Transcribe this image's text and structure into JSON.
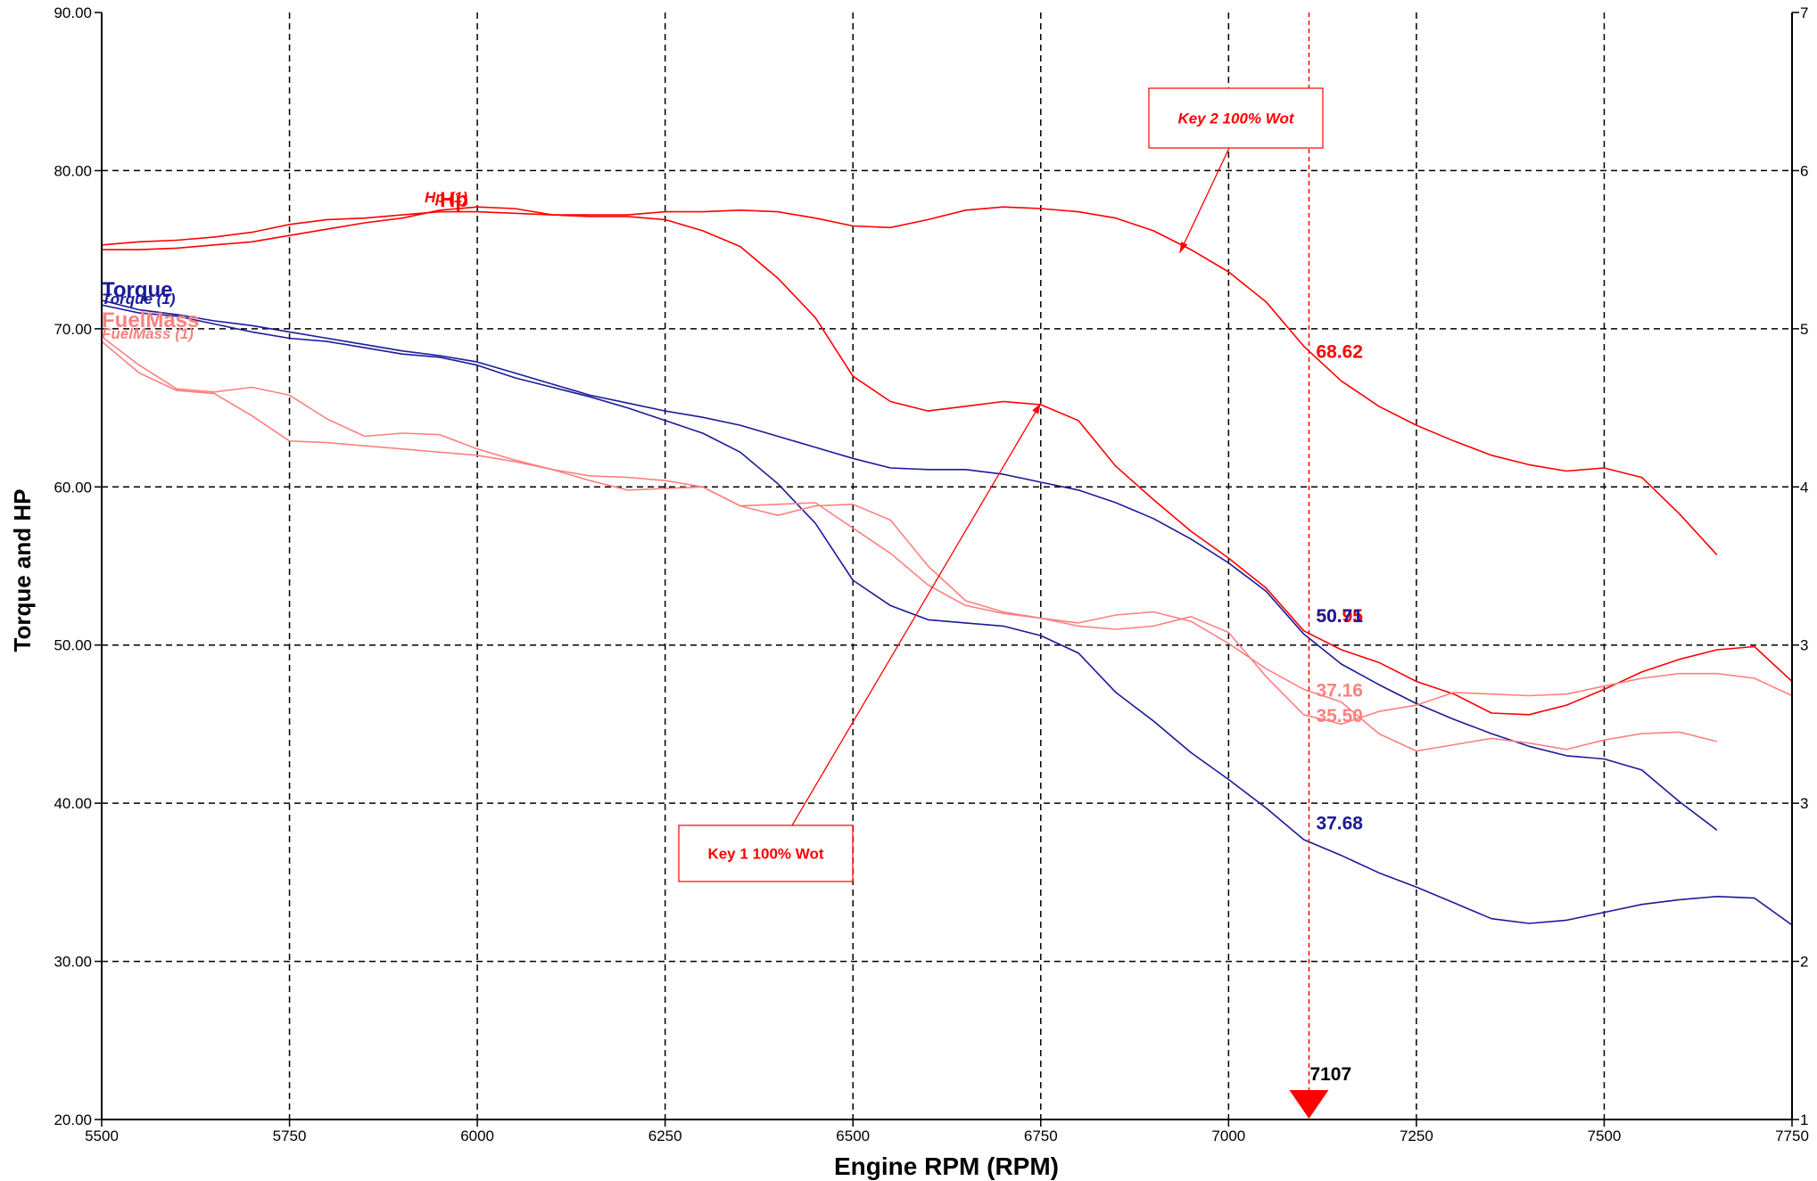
{
  "chart_data": {
    "type": "line",
    "title_partial": "...",
    "xlabel": "Engine RPM (RPM)",
    "ylabel": "Torque and HP",
    "xlim": [
      5500,
      7750
    ],
    "ylim": [
      20,
      90
    ],
    "x_ticks": [
      5500,
      5750,
      6000,
      6250,
      6500,
      6750,
      7000,
      7250,
      7500,
      7750
    ],
    "x_tick_labels": [
      "5500",
      "5750",
      "6000",
      "6250",
      "6500",
      "6750",
      "7000",
      "7250",
      "7500",
      "7750"
    ],
    "y_ticks": [
      20,
      30,
      40,
      50,
      60,
      70,
      80,
      90
    ],
    "y_tick_labels": [
      "20.00",
      "30.00",
      "40.00",
      "50.00",
      "60.00",
      "70.00",
      "80.00",
      "90.00"
    ],
    "grid": true,
    "colors": {
      "hp": "#ff0000",
      "torque": "#1a1a99",
      "fuel": "#ff8080",
      "cursor": "#ff0000",
      "grid": "#000000"
    },
    "legend": [
      {
        "label": "Torque",
        "style": "big",
        "color": "#1a1a99"
      },
      {
        "label": "Torque (1)",
        "style": "small",
        "color": "#1a1a99"
      },
      {
        "label": "FuelMass",
        "style": "big",
        "color": "#ff8080"
      },
      {
        "label": "FuelMass (1)",
        "style": "small",
        "color": "#ff8080"
      },
      {
        "label": "Hp (1)",
        "style": "small",
        "color": "#ff0000"
      },
      {
        "label": "Hp",
        "style": "big",
        "color": "#ff0000"
      }
    ],
    "series": [
      {
        "name": "Hp",
        "color": "#ff0000",
        "x": [
          5500,
          5550,
          5600,
          5650,
          5700,
          5750,
          5800,
          5850,
          5900,
          5950,
          6000,
          6050,
          6100,
          6150,
          6200,
          6250,
          6300,
          6350,
          6400,
          6450,
          6500,
          6550,
          6600,
          6650,
          6700,
          6750,
          6800,
          6850,
          6900,
          6950,
          7000,
          7050,
          7100,
          7150,
          7200,
          7250,
          7300,
          7350,
          7400,
          7450,
          7500,
          7550,
          7600,
          7650
        ],
        "y": [
          75.3,
          75.5,
          75.6,
          75.8,
          76.1,
          76.6,
          76.9,
          77.0,
          77.2,
          77.4,
          77.4,
          77.3,
          77.2,
          77.2,
          77.2,
          77.4,
          77.4,
          77.5,
          77.4,
          77.0,
          76.5,
          76.4,
          76.9,
          77.5,
          77.7,
          77.6,
          77.4,
          77.0,
          76.2,
          75.0,
          73.6,
          71.7,
          68.9,
          66.7,
          65.1,
          63.9,
          62.9,
          62.0,
          61.4,
          61.0,
          61.2,
          60.6,
          58.3,
          55.7
        ]
      },
      {
        "name": "Hp (1)",
        "color": "#ff0000",
        "x": [
          5500,
          5550,
          5600,
          5650,
          5700,
          5750,
          5800,
          5850,
          5900,
          5950,
          6000,
          6050,
          6100,
          6150,
          6200,
          6250,
          6300,
          6350,
          6400,
          6450,
          6500,
          6550,
          6600,
          6650,
          6700,
          6750,
          6800,
          6850,
          6900,
          6950,
          7000,
          7050,
          7100,
          7150,
          7200,
          7250,
          7300,
          7350,
          7400,
          7450,
          7500,
          7550,
          7600,
          7650,
          7700,
          7750
        ],
        "y": [
          75.0,
          75.0,
          75.1,
          75.3,
          75.5,
          75.9,
          76.3,
          76.7,
          77.0,
          77.5,
          77.7,
          77.6,
          77.2,
          77.1,
          77.1,
          76.9,
          76.2,
          75.2,
          73.2,
          70.7,
          67.0,
          65.4,
          64.8,
          65.1,
          65.4,
          65.2,
          64.2,
          61.3,
          59.2,
          57.2,
          55.5,
          53.6,
          50.9,
          49.7,
          48.9,
          47.7,
          46.9,
          45.7,
          45.6,
          46.2,
          47.2,
          48.3,
          49.1,
          49.7,
          49.9,
          47.7
        ]
      },
      {
        "name": "Torque",
        "color": "#1a1a99",
        "x": [
          5500,
          5550,
          5600,
          5650,
          5700,
          5750,
          5800,
          5850,
          5900,
          5950,
          6000,
          6050,
          6100,
          6150,
          6200,
          6250,
          6300,
          6350,
          6400,
          6450,
          6500,
          6550,
          6600,
          6650,
          6700,
          6750,
          6800,
          6850,
          6900,
          6950,
          7000,
          7050,
          7100,
          7150,
          7200,
          7250,
          7300,
          7350,
          7400,
          7450,
          7500,
          7550,
          7600,
          7650
        ],
        "y": [
          71.8,
          71.2,
          70.9,
          70.5,
          70.2,
          69.8,
          69.4,
          69.0,
          68.6,
          68.3,
          67.9,
          67.2,
          66.5,
          65.8,
          65.3,
          64.8,
          64.4,
          63.9,
          63.2,
          62.5,
          61.8,
          61.2,
          61.1,
          61.1,
          60.8,
          60.3,
          59.8,
          59.0,
          58.0,
          56.7,
          55.2,
          53.4,
          50.7,
          48.8,
          47.5,
          46.3,
          45.3,
          44.4,
          43.6,
          43.0,
          42.8,
          42.1,
          40.1,
          38.3
        ]
      },
      {
        "name": "Torque (1)",
        "color": "#1a1a99",
        "x": [
          5500,
          5550,
          5600,
          5650,
          5700,
          5750,
          5800,
          5850,
          5900,
          5950,
          6000,
          6050,
          6100,
          6150,
          6200,
          6250,
          6300,
          6350,
          6400,
          6450,
          6500,
          6550,
          6600,
          6650,
          6700,
          6750,
          6800,
          6850,
          6900,
          6950,
          7000,
          7050,
          7100,
          7150,
          7200,
          7250,
          7300,
          7350,
          7400,
          7450,
          7500,
          7550,
          7600,
          7650,
          7700,
          7750
        ],
        "y": [
          71.5,
          71.0,
          70.8,
          70.3,
          69.8,
          69.4,
          69.2,
          68.8,
          68.4,
          68.2,
          67.7,
          66.9,
          66.3,
          65.7,
          65.0,
          64.2,
          63.4,
          62.2,
          60.2,
          57.7,
          54.1,
          52.5,
          51.6,
          51.4,
          51.2,
          50.6,
          49.5,
          47.0,
          45.2,
          43.2,
          41.5,
          39.7,
          37.7,
          36.7,
          35.6,
          34.7,
          33.7,
          32.7,
          32.4,
          32.6,
          33.1,
          33.6,
          33.9,
          34.1,
          34.0,
          32.3
        ]
      },
      {
        "name": "FuelMass",
        "color": "#ff8080",
        "x": [
          5500,
          5550,
          5600,
          5650,
          5700,
          5750,
          5800,
          5850,
          5900,
          5950,
          6000,
          6050,
          6100,
          6150,
          6200,
          6250,
          6300,
          6350,
          6400,
          6450,
          6500,
          6550,
          6600,
          6650,
          6700,
          6750,
          6800,
          6850,
          6900,
          6950,
          7000,
          7050,
          7100,
          7150,
          7200,
          7250,
          7300,
          7350,
          7400,
          7450,
          7500,
          7550,
          7600,
          7650
        ],
        "y": [
          69.5,
          67.7,
          66.2,
          66.0,
          66.3,
          65.8,
          64.3,
          63.2,
          63.4,
          63.3,
          62.4,
          61.7,
          61.1,
          60.4,
          59.8,
          59.9,
          60.0,
          58.8,
          58.2,
          58.8,
          58.9,
          57.9,
          55.0,
          52.8,
          52.1,
          51.7,
          51.4,
          51.9,
          52.1,
          51.5,
          50.1,
          48.5,
          47.2,
          46.4,
          44.4,
          43.3,
          43.7,
          44.1,
          43.8,
          43.4,
          44.0,
          44.4,
          44.5,
          43.9
        ]
      },
      {
        "name": "FuelMass (1)",
        "color": "#ff8080",
        "x": [
          5500,
          5550,
          5600,
          5650,
          5700,
          5750,
          5800,
          5850,
          5900,
          5950,
          6000,
          6050,
          6100,
          6150,
          6200,
          6250,
          6300,
          6350,
          6400,
          6450,
          6500,
          6550,
          6600,
          6650,
          6700,
          6750,
          6800,
          6850,
          6900,
          6950,
          7000,
          7050,
          7100,
          7150,
          7200,
          7250,
          7300,
          7350,
          7400,
          7450,
          7500,
          7550,
          7600,
          7650,
          7700,
          7750
        ],
        "y": [
          69.2,
          67.2,
          66.1,
          65.9,
          64.5,
          62.9,
          62.8,
          62.6,
          62.4,
          62.2,
          62.0,
          61.6,
          61.1,
          60.7,
          60.6,
          60.4,
          60.0,
          58.8,
          58.9,
          59.0,
          57.4,
          55.8,
          53.8,
          52.5,
          52.0,
          51.7,
          51.2,
          51.0,
          51.2,
          51.8,
          50.8,
          48.0,
          45.6,
          45.0,
          45.8,
          46.2,
          47.0,
          46.9,
          46.8,
          46.9,
          47.4,
          47.9,
          48.2,
          48.2,
          47.9,
          46.8
        ]
      }
    ],
    "cursor": {
      "x": 7107,
      "label": "7107",
      "values": [
        {
          "text": "68.62",
          "y": 68.62,
          "color": "#ff0000",
          "overlap": false
        },
        {
          "text": "50.95",
          "y": 51.9,
          "color": "#ff0000",
          "overlap": true
        },
        {
          "text": "50.71",
          "y": 51.9,
          "color": "#1a1a99",
          "overlap": true
        },
        {
          "text": "37.16",
          "y": 47.2,
          "color": "#ff8080",
          "overlap": false
        },
        {
          "text": "35.50",
          "y": 45.6,
          "color": "#ff8080",
          "overlap": false
        },
        {
          "text": "37.68",
          "y": 38.8,
          "color": "#1a1a99",
          "overlap": false
        }
      ]
    },
    "annotations": [
      {
        "text": "Key 2 100% Wot",
        "italic": true,
        "target": {
          "x": 6935,
          "y": 74.8
        }
      },
      {
        "text": "Key 1 100% Wot",
        "italic": false,
        "target": {
          "x": 6750,
          "y": 65.3
        }
      }
    ],
    "right_axis_partial_labels": [
      "7",
      "6",
      "5",
      "4",
      "3",
      "3",
      "2",
      "1"
    ]
  }
}
